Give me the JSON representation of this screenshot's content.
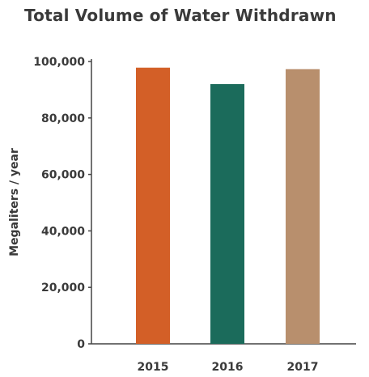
{
  "chart_data": {
    "type": "bar",
    "title": "Total Volume of Water Withdrawn",
    "ylabel": "Megaliters / year",
    "xlabel": "",
    "categories": [
      "2015",
      "2016",
      "2017"
    ],
    "values": [
      97800,
      92000,
      97300
    ],
    "colors": [
      "#d35f27",
      "#1b6b5b",
      "#b88f6d"
    ],
    "ylim": [
      0,
      100000
    ],
    "yticks": [
      0,
      20000,
      40000,
      60000,
      80000,
      100000
    ],
    "ytick_labels": [
      "0",
      "20,000",
      "40,000",
      "60,000",
      "80,000",
      "100,000"
    ],
    "grid": false,
    "legend": "none"
  }
}
